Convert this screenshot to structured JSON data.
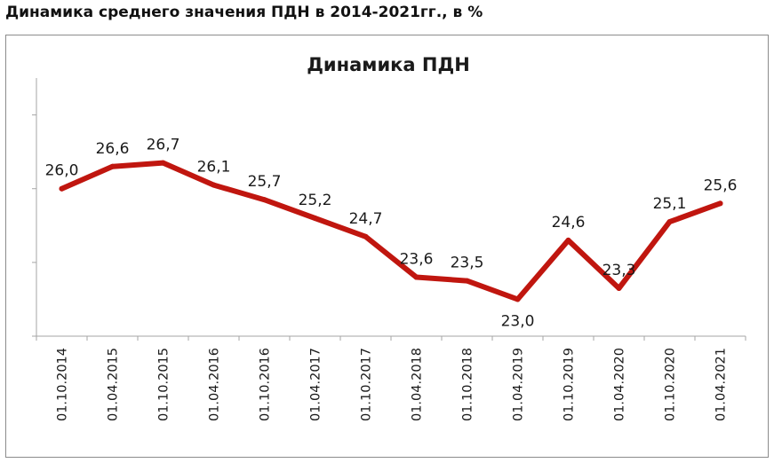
{
  "page_heading": "Динамика среднего значения ПДН в 2014-2021гг., в %",
  "chart_data": {
    "type": "line",
    "title": "Динамика ПДН",
    "xlabel": "",
    "ylabel": "",
    "categories": [
      "01.10.2014",
      "01.04.2015",
      "01.10.2015",
      "01.04.2016",
      "01.10.2016",
      "01.04.2017",
      "01.10.2017",
      "01.04.2018",
      "01.10.2018",
      "01.04.2019",
      "01.10.2019",
      "01.04.2020",
      "01.10.2020",
      "01.04.2021"
    ],
    "series": [
      {
        "values": [
          26.0,
          26.6,
          26.7,
          26.1,
          25.7,
          25.2,
          24.7,
          23.6,
          23.5,
          23.0,
          24.6,
          23.3,
          25.1,
          25.6
        ],
        "data_labels": [
          "26,0",
          "26,6",
          "26,7",
          "26,1",
          "25,7",
          "25,2",
          "24,7",
          "23,6",
          "23,5",
          "23,0",
          "24,6",
          "23,3",
          "25,1",
          "25,6"
        ],
        "label_positions": [
          "above",
          "above",
          "above",
          "above",
          "above",
          "above",
          "above",
          "above",
          "above",
          "below",
          "above",
          "above",
          "above",
          "above"
        ],
        "color": "#c0160f"
      }
    ],
    "ylim": [
      22,
      29
    ],
    "grid": false,
    "legend": "none",
    "axis_color": "#a6a6a6"
  }
}
